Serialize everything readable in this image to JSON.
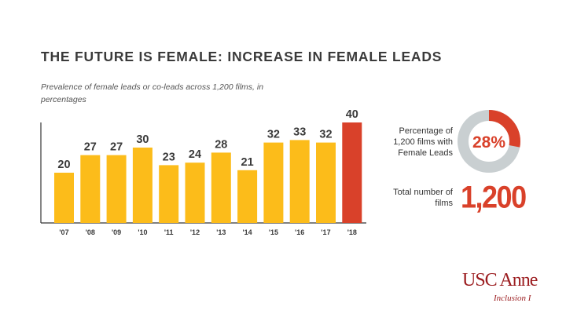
{
  "header": {
    "title": "THE FUTURE IS FEMALE: INCREASE IN FEMALE LEADS",
    "subtitle": "Prevalence of female leads or co-leads across 1,200 films, in percentages"
  },
  "chart_data": {
    "type": "bar",
    "categories": [
      "'07",
      "'08",
      "'09",
      "'10",
      "'11",
      "'12",
      "'13",
      "'14",
      "'15",
      "'16",
      "'17",
      "'18"
    ],
    "values": [
      20,
      27,
      27,
      30,
      23,
      24,
      28,
      21,
      32,
      33,
      32,
      40
    ],
    "title": "THE FUTURE IS FEMALE: INCREASE IN FEMALE LEADS",
    "subtitle": "Prevalence of female leads or co-leads across 1,200 films, in percentages",
    "xlabel": "",
    "ylabel": "",
    "ylim": [
      0,
      40
    ],
    "grid": false,
    "colors": {
      "default": "#fcbc1a",
      "highlight": "#d9412a"
    },
    "highlight_category": "'18"
  },
  "stats": {
    "percentage_label": "Percentage of 1,200 films with Female Leads",
    "percentage_value": "28%",
    "percentage_fraction": 0.28,
    "total_label": "Total number of films",
    "total_value": "1,200"
  },
  "donut_colors": {
    "fill": "#d9412a",
    "track": "#c9cfd1"
  },
  "logo": {
    "text": "USC Anne",
    "subtext": "Inclusion I"
  }
}
